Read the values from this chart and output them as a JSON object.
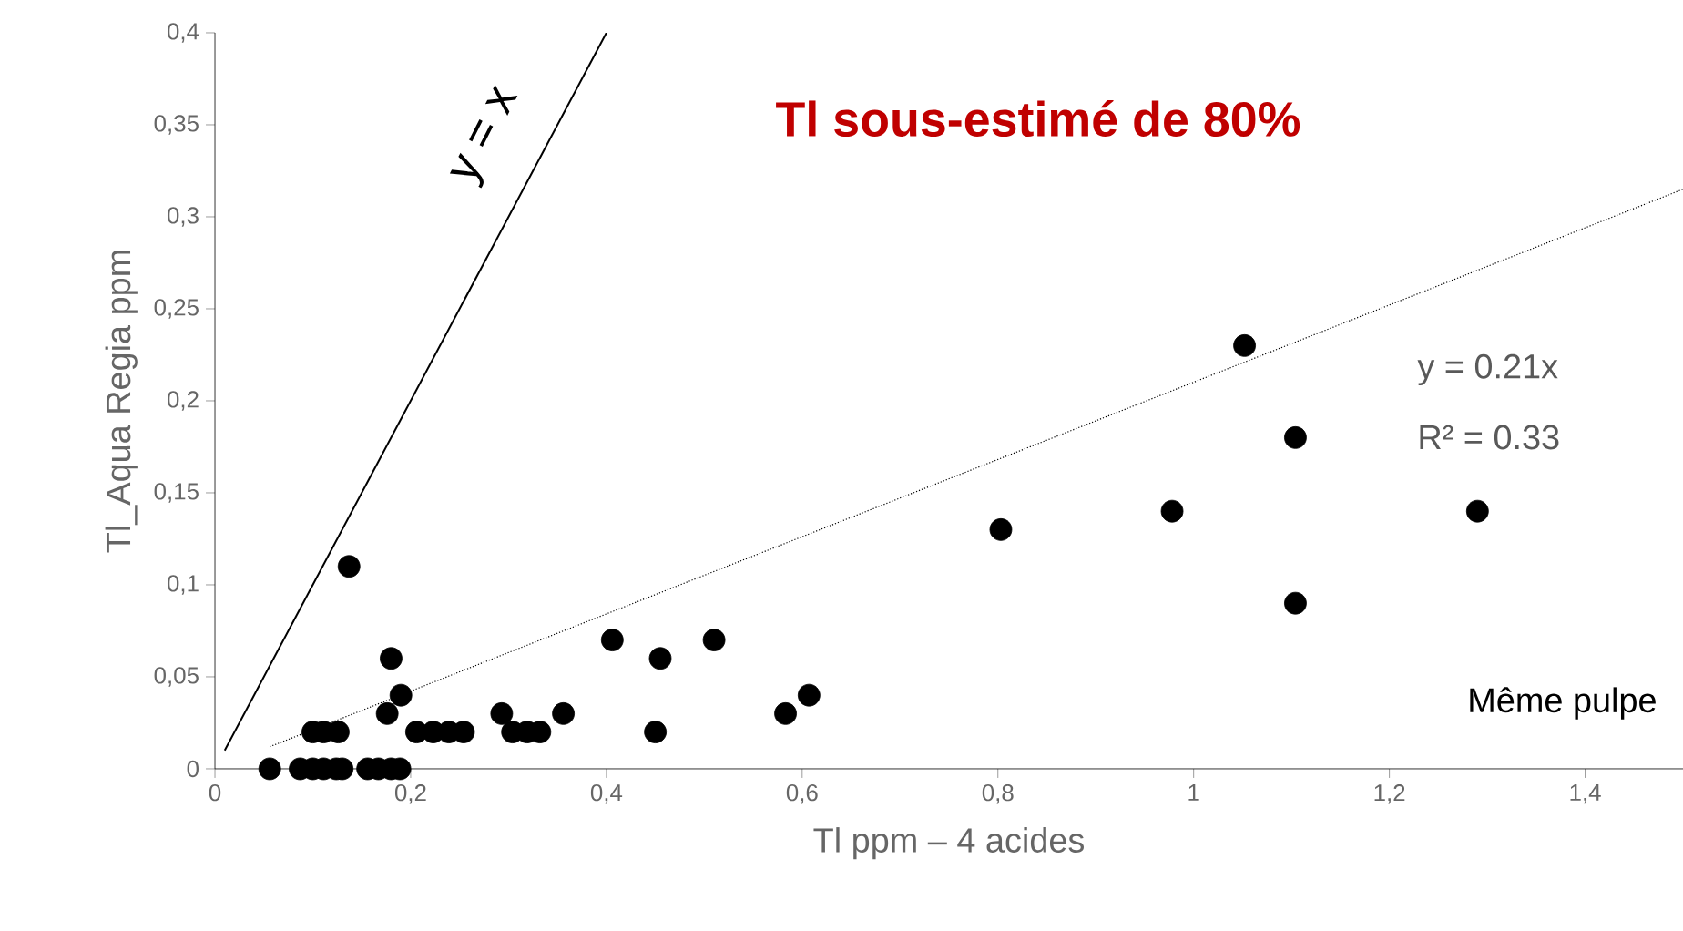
{
  "chart_data": {
    "type": "scatter",
    "title": "Tl sous-estimé de 80%",
    "xlabel": "Tl ppm – 4 acides",
    "ylabel": "Tl_Aqua Regia ppm",
    "xlim": [
      0,
      1.5
    ],
    "ylim": [
      0,
      0.4
    ],
    "xticks": [
      {
        "value": 0,
        "label": "0"
      },
      {
        "value": 0.2,
        "label": "0,2"
      },
      {
        "value": 0.4,
        "label": "0,4"
      },
      {
        "value": 0.6,
        "label": "0,6"
      },
      {
        "value": 0.8,
        "label": "0,8"
      },
      {
        "value": 1,
        "label": "1"
      },
      {
        "value": 1.2,
        "label": "1,2"
      },
      {
        "value": 1.4,
        "label": "1,4"
      }
    ],
    "yticks": [
      {
        "value": 0,
        "label": "0"
      },
      {
        "value": 0.05,
        "label": "0,05"
      },
      {
        "value": 0.1,
        "label": "0,1"
      },
      {
        "value": 0.15,
        "label": "0,15"
      },
      {
        "value": 0.2,
        "label": "0,2"
      },
      {
        "value": 0.25,
        "label": "0,25"
      },
      {
        "value": 0.3,
        "label": "0,3"
      },
      {
        "value": 0.35,
        "label": "0,35"
      },
      {
        "value": 0.4,
        "label": "0,4"
      }
    ],
    "grid": false,
    "series": [
      {
        "color": "#000000",
        "marker": "circle",
        "x": [
          0.056,
          0.087,
          0.1,
          0.111,
          0.124,
          0.13,
          0.156,
          0.167,
          0.18,
          0.189,
          0.1,
          0.111,
          0.126,
          0.206,
          0.223,
          0.239,
          0.254,
          0.304,
          0.319,
          0.332,
          0.45,
          0.293,
          0.356,
          0.176,
          0.583,
          0.19,
          0.607,
          0.18,
          0.455,
          0.406,
          0.51,
          0.137,
          0.803,
          0.978,
          1.052,
          1.104,
          1.104,
          1.29
        ],
        "values": [
          0,
          0,
          0,
          0,
          0,
          0,
          0,
          0,
          0,
          0,
          0.02,
          0.02,
          0.02,
          0.02,
          0.02,
          0.02,
          0.02,
          0.02,
          0.02,
          0.02,
          0.02,
          0.03,
          0.03,
          0.03,
          0.03,
          0.04,
          0.04,
          0.06,
          0.06,
          0.07,
          0.07,
          0.11,
          0.13,
          0.14,
          0.23,
          0.18,
          0.09,
          0.14
        ]
      },
      {
        "type": "line",
        "color": "#000000",
        "line_style": "dotted",
        "marker": "none",
        "x": [
          0.056,
          1.5
        ],
        "values": [
          0.012,
          0.315
        ]
      },
      {
        "type": "line",
        "color": "#000000",
        "line_style": "solid",
        "marker": "none",
        "x": [
          0.01,
          0.4
        ],
        "values": [
          0.01,
          0.4
        ]
      }
    ],
    "annotations": [
      "y = x",
      "y = 0.21x",
      "R² = 0.33",
      "Même pulpe"
    ]
  }
}
